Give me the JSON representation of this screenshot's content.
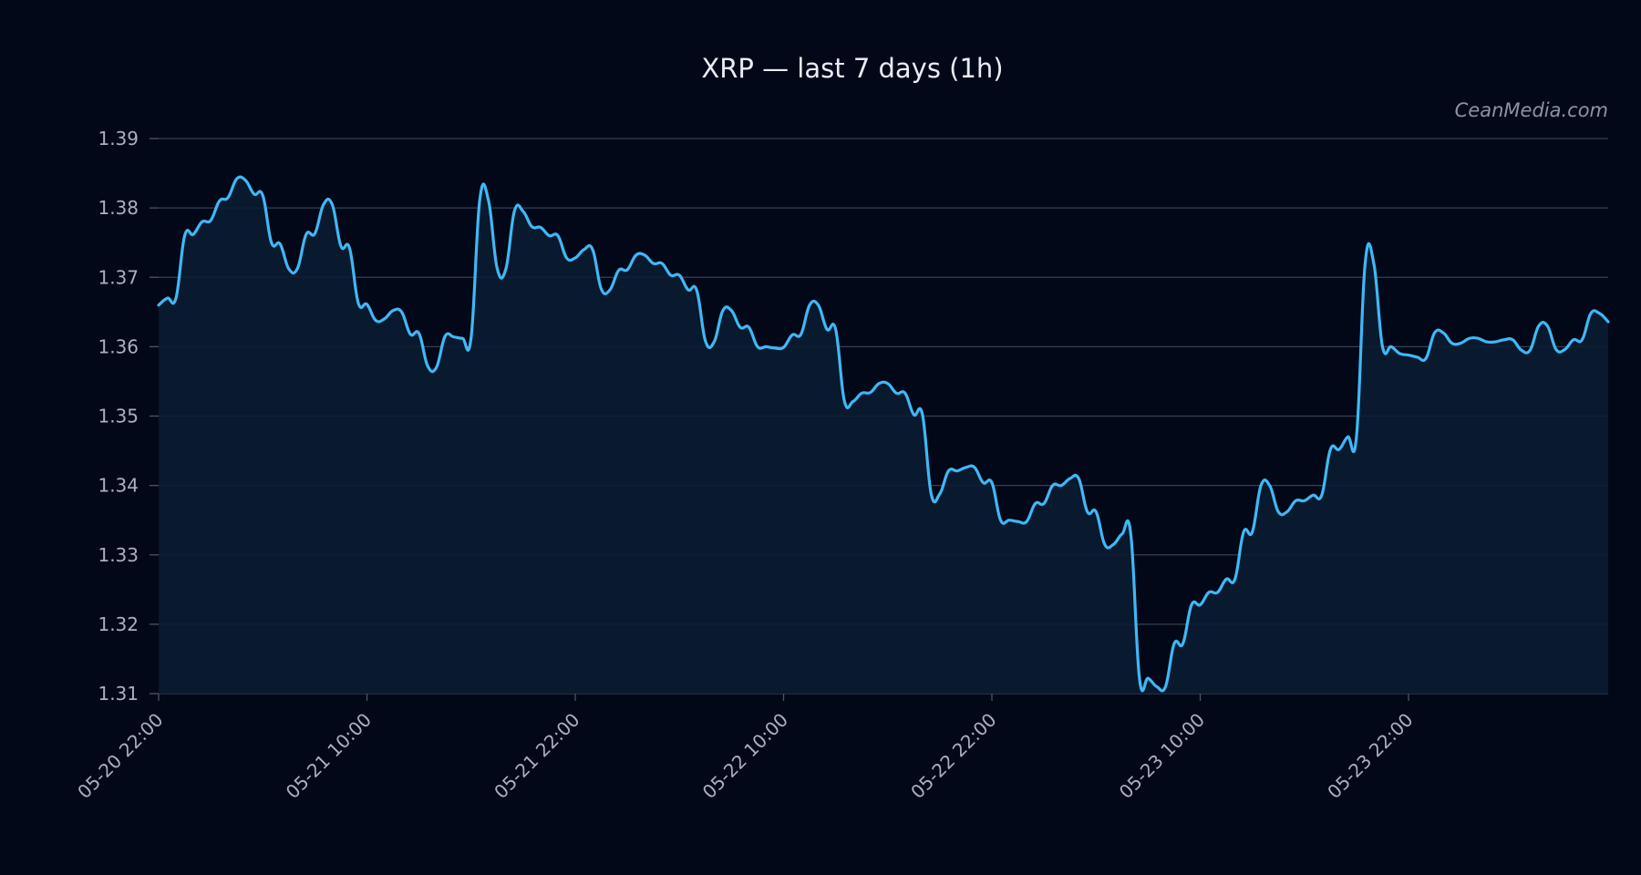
{
  "chart_data": {
    "type": "area",
    "title": "XRP — last 7 days (1h)",
    "watermark": "CeanMedia.com",
    "xlabel": "",
    "ylabel": "",
    "ylim": [
      1.31,
      1.39
    ],
    "y_ticks": [
      "1.31",
      "1.32",
      "1.33",
      "1.34",
      "1.35",
      "1.36",
      "1.37",
      "1.38",
      "1.39"
    ],
    "x_ticks": [
      {
        "label": "05-20 22:00",
        "hour": 0
      },
      {
        "label": "05-21 10:00",
        "hour": 12
      },
      {
        "label": "05-21 22:00",
        "hour": 24
      },
      {
        "label": "05-22 10:00",
        "hour": 36
      },
      {
        "label": "05-22 22:00",
        "hour": 48
      },
      {
        "label": "05-23 10:00",
        "hour": 60
      },
      {
        "label": "05-23 22:00",
        "hour": 72
      }
    ],
    "grid": "horizontal",
    "colors": {
      "background": "#030818",
      "line": "#3fb8f5",
      "fill": "#0b1c33",
      "grid": "#334155"
    },
    "series": [
      {
        "values": [
          1.366,
          1.367,
          1.367,
          1.376,
          1.3762,
          1.378,
          1.3782,
          1.381,
          1.3815,
          1.3842,
          1.384,
          1.382,
          1.3818,
          1.375,
          1.3748,
          1.3712,
          1.3713,
          1.3762,
          1.3763,
          1.3805,
          1.3805,
          1.3745,
          1.3742,
          1.3663,
          1.3661,
          1.3638,
          1.364,
          1.3652,
          1.365,
          1.3618,
          1.3619,
          1.3572,
          1.357,
          1.3615,
          1.3614,
          1.3612,
          1.3613,
          1.3812,
          1.3811,
          1.3713,
          1.3712,
          1.3796,
          1.3795,
          1.3773,
          1.3772,
          1.376,
          1.376,
          1.3728,
          1.3728,
          1.374,
          1.374,
          1.3683,
          1.3682,
          1.371,
          1.3711,
          1.3732,
          1.3732,
          1.372,
          1.372,
          1.3703,
          1.3703,
          1.3682,
          1.3681,
          1.3608,
          1.3607,
          1.3652,
          1.3652,
          1.3628,
          1.3628,
          1.36,
          1.36,
          1.3598,
          1.3599,
          1.3617,
          1.3618,
          1.366,
          1.366,
          1.3625,
          1.3625,
          1.3522,
          1.3521,
          1.3533,
          1.3534,
          1.3547,
          1.3547,
          1.3533,
          1.3533,
          1.3502,
          1.3502,
          1.3388,
          1.3388,
          1.3421,
          1.3421,
          1.3426,
          1.3426,
          1.3404,
          1.3404,
          1.335,
          1.335,
          1.3348,
          1.3348,
          1.3374,
          1.3374,
          1.34,
          1.34,
          1.341,
          1.341,
          1.3362,
          1.3362,
          1.3315,
          1.3315,
          1.333,
          1.333,
          1.3122,
          1.3122,
          1.311,
          1.311,
          1.3172,
          1.3172,
          1.3228,
          1.3228,
          1.3246,
          1.3246,
          1.3265,
          1.3265,
          1.3333,
          1.3333,
          1.34,
          1.34,
          1.3362,
          1.3362,
          1.3378,
          1.3378,
          1.3386,
          1.3386,
          1.3452,
          1.3452,
          1.347,
          1.347,
          1.372,
          1.372,
          1.36,
          1.36,
          1.359,
          1.3588,
          1.3585,
          1.3583,
          1.362,
          1.362,
          1.3605,
          1.3605,
          1.3612,
          1.3612,
          1.3607,
          1.3607,
          1.361,
          1.361,
          1.3595,
          1.3595,
          1.363,
          1.363,
          1.3596,
          1.3596,
          1.361,
          1.361,
          1.3648,
          1.3648,
          1.3636
        ]
      }
    ]
  }
}
